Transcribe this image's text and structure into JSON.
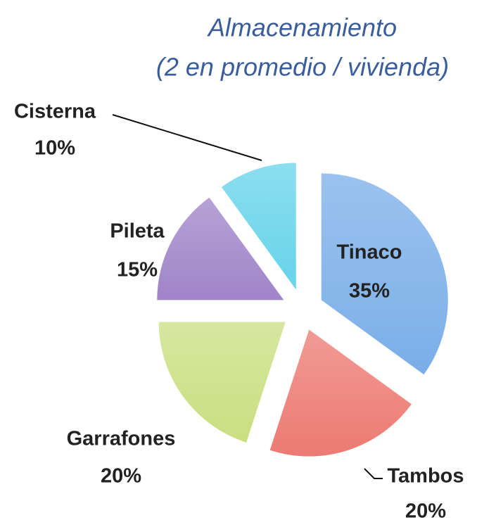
{
  "chart_data": {
    "type": "pie",
    "title": "Almacenamiento",
    "subtitle": "(2 en promedio / vivienda)",
    "categories": [
      "Tinaco",
      "Tambos",
      "Garrafones",
      "Pileta",
      "Cisterna"
    ],
    "values": [
      35,
      20,
      20,
      15,
      10
    ],
    "value_labels": [
      "35%",
      "20%",
      "20%",
      "15%",
      "10%"
    ],
    "colors": [
      "#7aaee8",
      "#ec7a72",
      "#c9df80",
      "#9f84c8",
      "#66d3ea"
    ]
  }
}
